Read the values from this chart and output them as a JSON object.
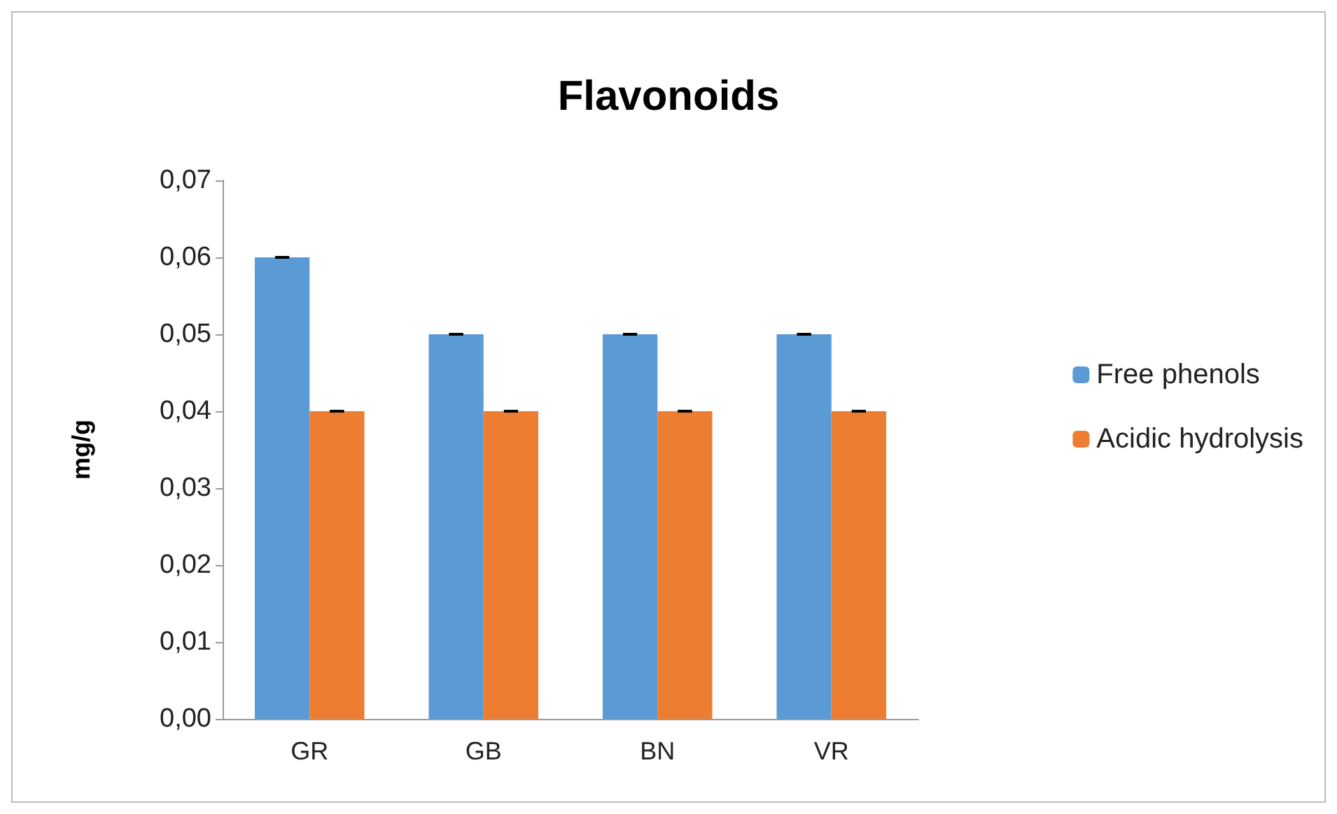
{
  "chart_data": {
    "type": "bar",
    "title": "Flavonoids",
    "ylabel": "mg/g",
    "categories": [
      "GR",
      "GB",
      "BN",
      "VR"
    ],
    "series": [
      {
        "name": "Free phenols",
        "color": "#5b9bd5",
        "values": [
          0.06,
          0.05,
          0.05,
          0.05
        ],
        "errors": [
          0,
          0,
          0,
          0
        ]
      },
      {
        "name": "Acidic hydrolysis",
        "color": "#ed7d31",
        "values": [
          0.04,
          0.04,
          0.04,
          0.04
        ],
        "errors": [
          0,
          0,
          0,
          0
        ]
      }
    ],
    "ylim": [
      0,
      0.07
    ],
    "yticks": [
      {
        "value": 0,
        "label": "0,00"
      },
      {
        "value": 0.01,
        "label": "0,01"
      },
      {
        "value": 0.02,
        "label": "0,02"
      },
      {
        "value": 0.03,
        "label": "0,03"
      },
      {
        "value": 0.04,
        "label": "0,04"
      },
      {
        "value": 0.05,
        "label": "0,05"
      },
      {
        "value": 0.06,
        "label": "0,06"
      },
      {
        "value": 0.07,
        "label": "0,07"
      }
    ],
    "grid": false,
    "legend": "right"
  }
}
